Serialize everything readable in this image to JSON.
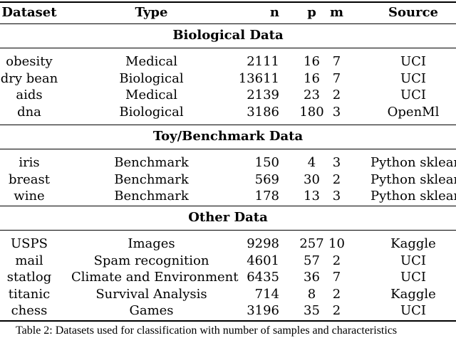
{
  "header": [
    "Dataset",
    "Type",
    "n",
    "p",
    "m",
    "Source"
  ],
  "sections": [
    {
      "title": "Biological Data",
      "rows": [
        [
          "obesity",
          "Medical",
          "2111",
          "16",
          "7",
          "UCI"
        ],
        [
          "dry bean",
          "Biological",
          "13611",
          "16",
          "7",
          "UCI"
        ],
        [
          "aids",
          "Medical",
          "2139",
          "23",
          "2",
          "UCI"
        ],
        [
          "dna",
          "Biological",
          "3186",
          "180",
          "3",
          "OpenMl"
        ]
      ]
    },
    {
      "title": "Toy/Benchmark Data",
      "rows": [
        [
          "iris",
          "Benchmark",
          "150",
          "4",
          "3",
          "Python sklearn"
        ],
        [
          "breast",
          "Benchmark",
          "569",
          "30",
          "2",
          "Python sklearn"
        ],
        [
          "wine",
          "Benchmark",
          "178",
          "13",
          "3",
          "Python sklearn"
        ]
      ]
    },
    {
      "title": "Other Data",
      "rows": [
        [
          "USPS",
          "Images",
          "9298",
          "257",
          "10",
          "Kaggle"
        ],
        [
          "mail",
          "Spam recognition",
          "4601",
          "57",
          "2",
          "UCI"
        ],
        [
          "statlog",
          "Climate and Environment",
          "6435",
          "36",
          "7",
          "UCI"
        ],
        [
          "titanic",
          "Survival Analysis",
          "714",
          "8",
          "2",
          "Kaggle"
        ],
        [
          "chess",
          "Games",
          "3196",
          "35",
          "2",
          "UCI"
        ]
      ]
    }
  ],
  "caption": "Table 2: Datasets used for classification with number of samples and characteristics"
}
